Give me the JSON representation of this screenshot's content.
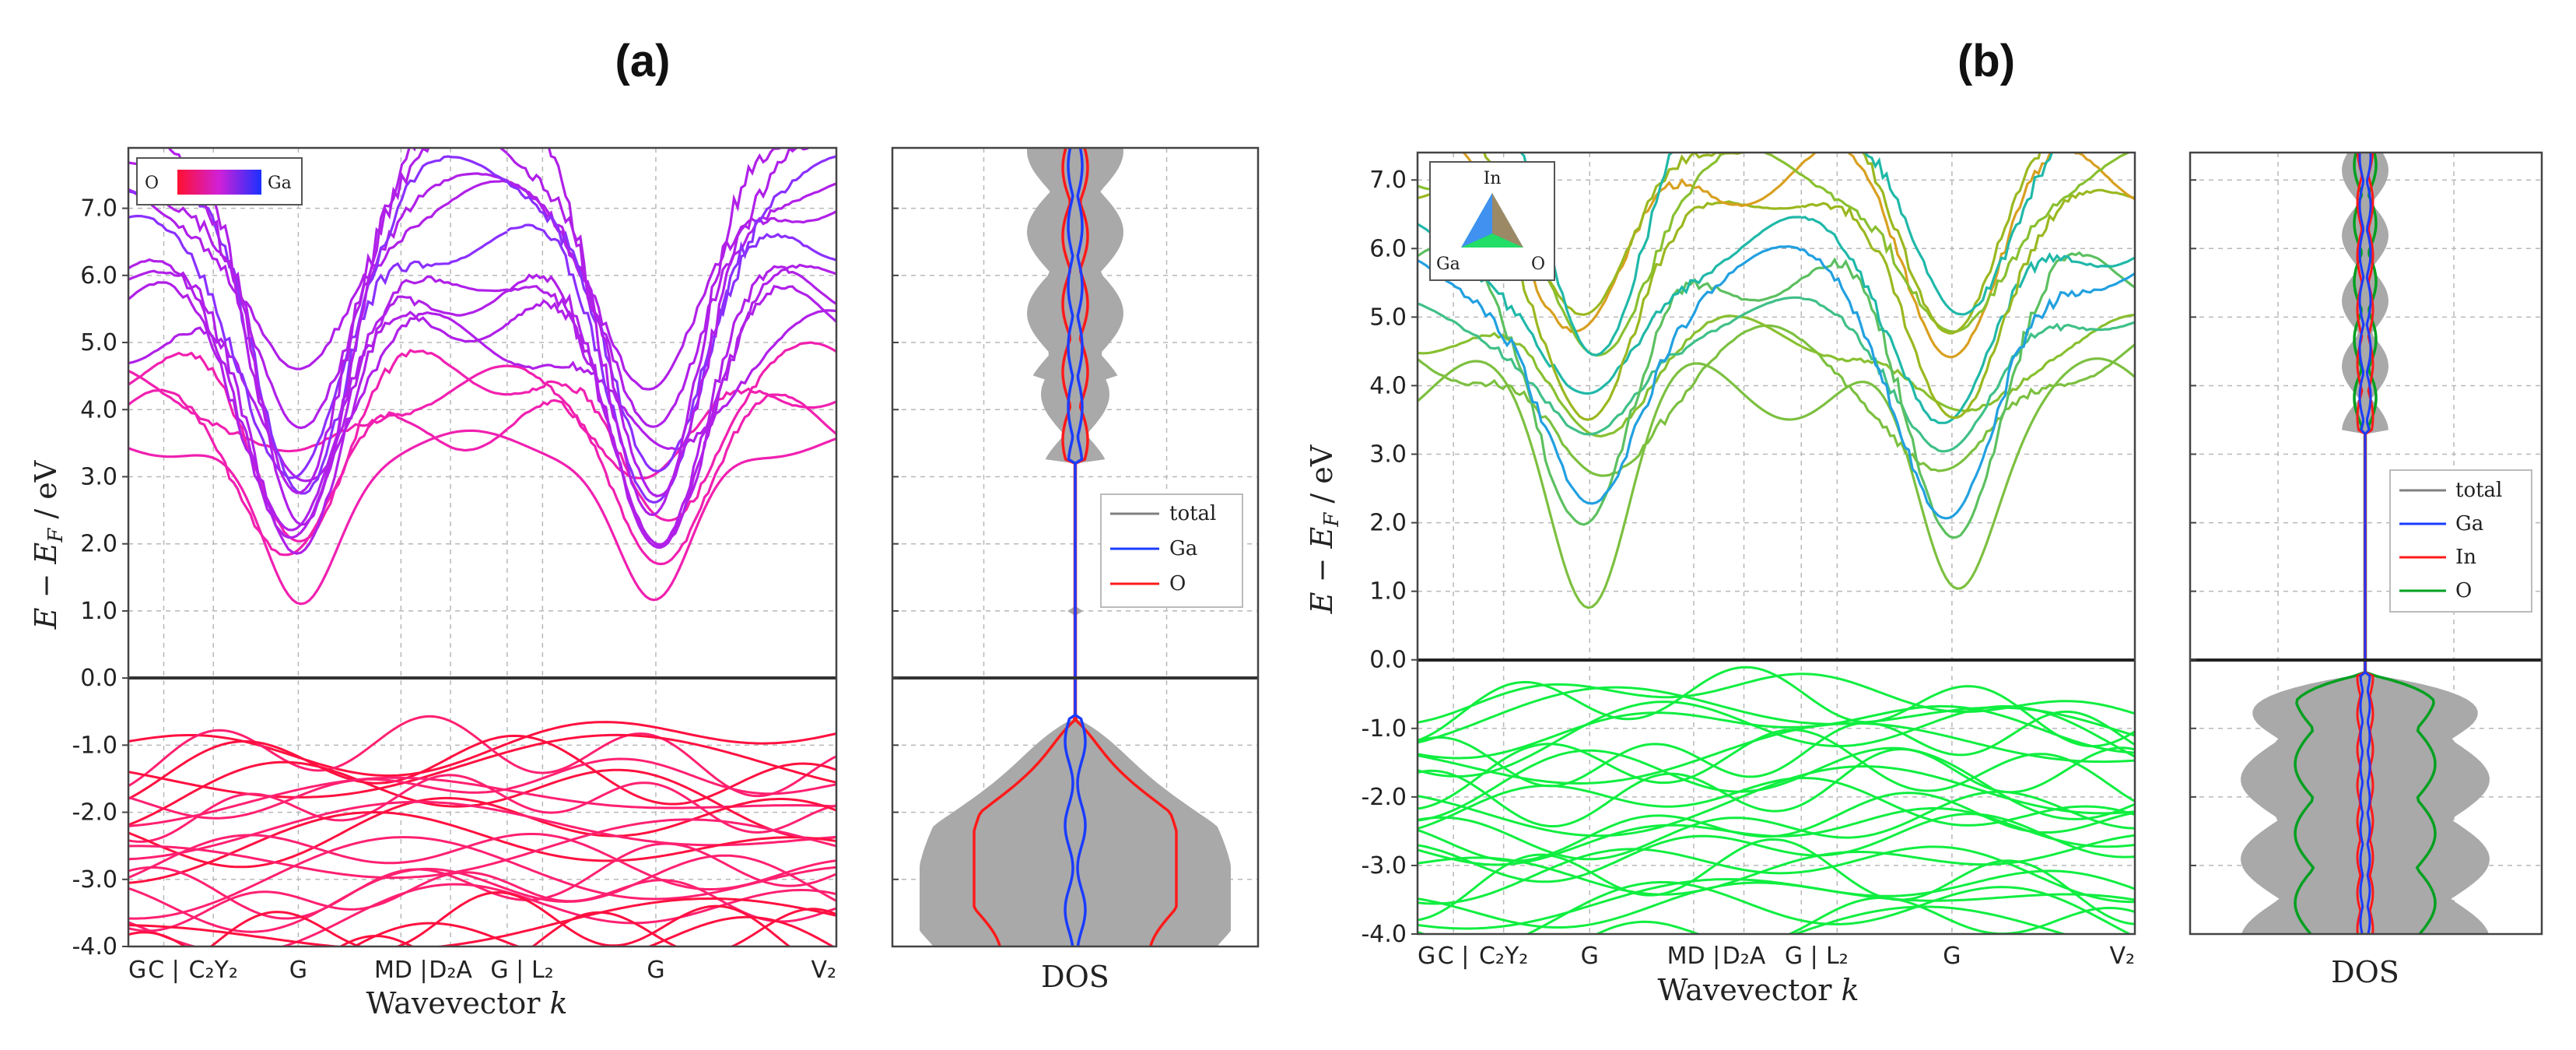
{
  "chart_data": [
    {
      "panel": "(a)",
      "type": "line",
      "subtype": "electronic band structure",
      "ylabel": "E − E_F / eV",
      "xlabel": "Wavevector k",
      "ylim": [
        -4.0,
        7.9
      ],
      "yticks": [
        "7.0",
        "6.0",
        "5.0",
        "4.0",
        "3.0",
        "2.0",
        "1.0",
        "0.0",
        "-1.0",
        "-2.0",
        "-3.0",
        "-4.0"
      ],
      "kpoints": [
        "G",
        "C |",
        "C₂Y₂",
        "G",
        "MD |",
        "D₂A",
        "G |",
        "L₂",
        "G",
        "V₂"
      ],
      "colorbar": {
        "left": "O",
        "right": "Ga"
      },
      "conduction_band_minimum_eV": 1.0,
      "valence_band_maximum_eV": -0.9,
      "band_gap_eV": 1.9
    },
    {
      "panel": "(a) DOS",
      "type": "area",
      "xlabel": "DOS",
      "ylim": [
        -4.0,
        7.9
      ],
      "legend": [
        "total",
        "Ga",
        "O"
      ],
      "series_colors": {
        "total": "#808080",
        "Ga": "#1a3cff",
        "O": "#ff2020"
      }
    },
    {
      "panel": "(b)",
      "type": "line",
      "subtype": "electronic band structure",
      "ylabel": "E − E_F / eV",
      "xlabel": "Wavevector k",
      "ylim": [
        -4.0,
        7.4
      ],
      "yticks": [
        "7.0",
        "6.0",
        "5.0",
        "4.0",
        "3.0",
        "2.0",
        "1.0",
        "0.0",
        "-1.0",
        "-2.0",
        "-3.0",
        "-4.0"
      ],
      "kpoints": [
        "G",
        "C |",
        "C₂Y₂",
        "G",
        "MD |",
        "D₂A",
        "G |",
        "L₂",
        "G",
        "V₂"
      ],
      "colortriangle": {
        "top": "In",
        "left": "Ga",
        "right": "O"
      },
      "conduction_band_minimum_eV": 1.2,
      "valence_band_maximum_eV": -0.3,
      "band_gap_eV": 1.5
    },
    {
      "panel": "(b) DOS",
      "type": "area",
      "xlabel": "DOS",
      "ylim": [
        -4.0,
        7.4
      ],
      "legend": [
        "total",
        "Ga",
        "In",
        "O"
      ],
      "series_colors": {
        "total": "#808080",
        "Ga": "#1a3cff",
        "In": "#ff2020",
        "O": "#00a020"
      }
    }
  ],
  "labels": {
    "a_title": "(a)",
    "b_title": "(b)",
    "ylabel_main": "E − E",
    "ylabel_sub": "F",
    "ylabel_unit": " / eV",
    "xlabel": "Wavevector ",
    "xlabel_k": "k",
    "dos": "DOS",
    "cbar_o": "O",
    "cbar_ga": "Ga",
    "tri_in": "In",
    "tri_ga": "Ga",
    "tri_o": "O"
  },
  "legend_a": [
    "total",
    "Ga",
    "O"
  ],
  "legend_b": [
    "total",
    "Ga",
    "In",
    "O"
  ]
}
